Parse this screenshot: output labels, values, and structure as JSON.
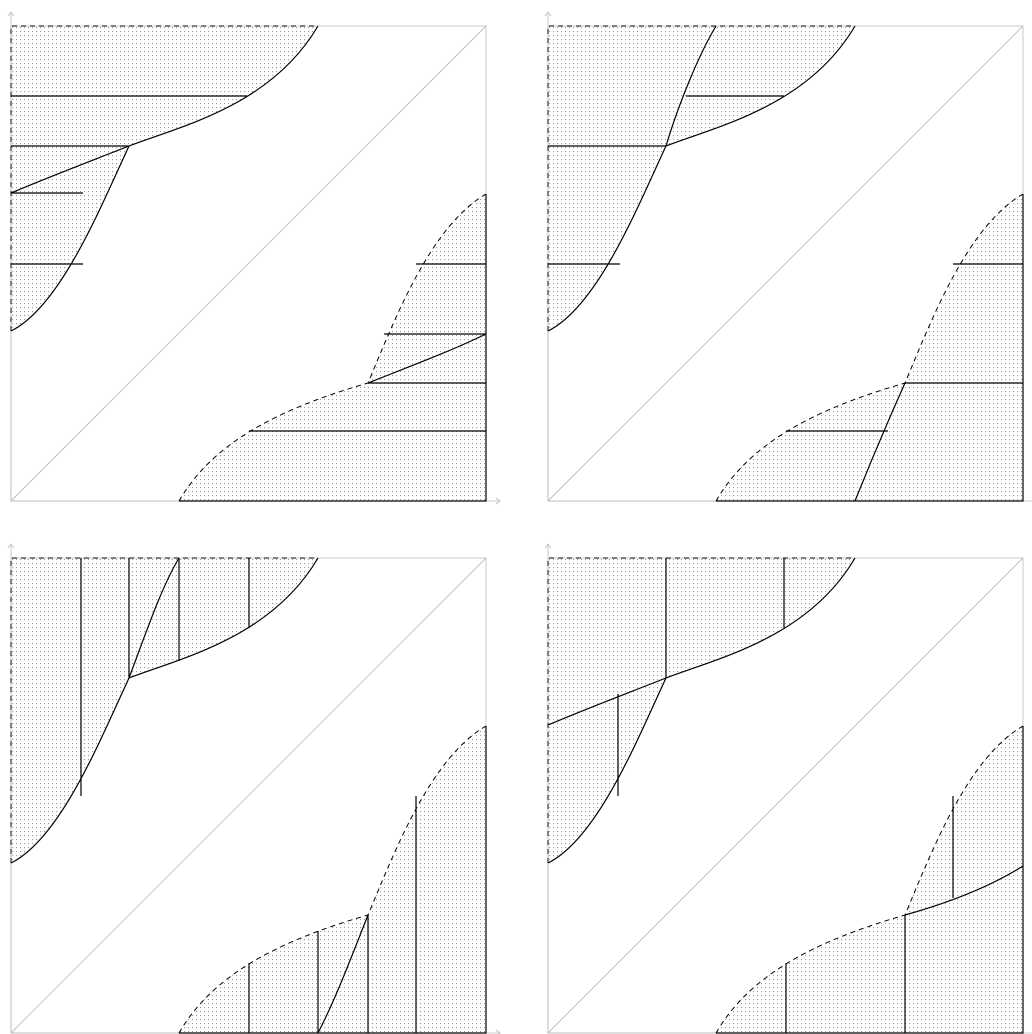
{
  "figure": {
    "panels": [
      {
        "id": "top-left",
        "hatching": "horizontal"
      },
      {
        "id": "top-right",
        "hatching": "horizontal"
      },
      {
        "id": "bottom-left",
        "hatching": "vertical"
      },
      {
        "id": "bottom-right",
        "hatching": "vertical"
      }
    ],
    "colors": {
      "stroke": "#000000",
      "axis": "#bbbbbb",
      "diagonal": "#bbbbbb",
      "dots": "#9a9a9a",
      "background": "#ffffff"
    }
  }
}
